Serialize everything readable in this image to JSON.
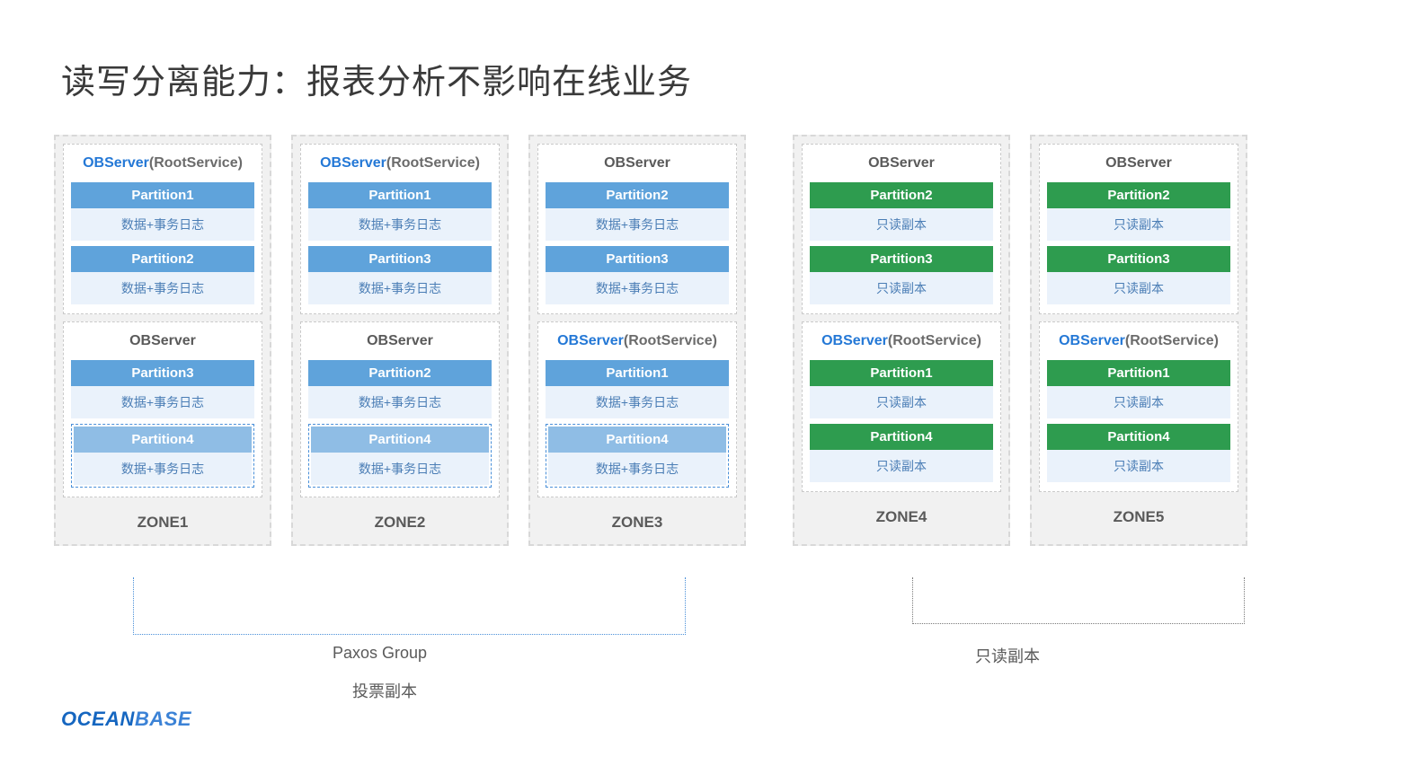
{
  "title": "读写分离能力：报表分析不影响在线业务",
  "colors": {
    "partition_blue": "#5fa3db",
    "partition_blue_light": "#8fbde5",
    "partition_green": "#2e9c4f",
    "partition_body_bg": "#eaf2fb",
    "partition_body_text": "#4a7db5",
    "zone_bg": "#f1f1f1",
    "title_text": "#3a3a3a",
    "bracket_blue": "#4a90d9",
    "bracket_gray": "#7a7a7a"
  },
  "zones": [
    {
      "label": "ZONE1",
      "servers": [
        {
          "title_blue": "OBServer",
          "title_suffix": "(RootService)",
          "partitions": [
            {
              "name": "Partition1",
              "desc": "数据+事务日志",
              "color": "blue",
              "dashed": false
            },
            {
              "name": "Partition2",
              "desc": "数据+事务日志",
              "color": "blue",
              "dashed": false
            }
          ]
        },
        {
          "title_plain": "OBServer",
          "partitions": [
            {
              "name": "Partition3",
              "desc": "数据+事务日志",
              "color": "blue",
              "dashed": false
            },
            {
              "name": "Partition4",
              "desc": "数据+事务日志",
              "color": "blue-light",
              "dashed": true
            }
          ]
        }
      ]
    },
    {
      "label": "ZONE2",
      "servers": [
        {
          "title_blue": "OBServer",
          "title_suffix": "(RootService)",
          "partitions": [
            {
              "name": "Partition1",
              "desc": "数据+事务日志",
              "color": "blue",
              "dashed": false
            },
            {
              "name": "Partition3",
              "desc": "数据+事务日志",
              "color": "blue",
              "dashed": false
            }
          ]
        },
        {
          "title_plain": "OBServer",
          "partitions": [
            {
              "name": "Partition2",
              "desc": "数据+事务日志",
              "color": "blue",
              "dashed": false
            },
            {
              "name": "Partition4",
              "desc": "数据+事务日志",
              "color": "blue-light",
              "dashed": true
            }
          ]
        }
      ]
    },
    {
      "label": "ZONE3",
      "servers": [
        {
          "title_plain": "OBServer",
          "partitions": [
            {
              "name": "Partition2",
              "desc": "数据+事务日志",
              "color": "blue",
              "dashed": false
            },
            {
              "name": "Partition3",
              "desc": "数据+事务日志",
              "color": "blue",
              "dashed": false
            }
          ]
        },
        {
          "title_blue": "OBServer",
          "title_suffix": "(RootService)",
          "partitions": [
            {
              "name": "Partition1",
              "desc": "数据+事务日志",
              "color": "blue",
              "dashed": false
            },
            {
              "name": "Partition4",
              "desc": "数据+事务日志",
              "color": "blue-light",
              "dashed": true
            }
          ]
        }
      ]
    },
    {
      "label": "ZONE4",
      "servers": [
        {
          "title_plain": "OBServer",
          "partitions": [
            {
              "name": "Partition2",
              "desc": "只读副本",
              "color": "green",
              "dashed": false
            },
            {
              "name": "Partition3",
              "desc": "只读副本",
              "color": "green",
              "dashed": false
            }
          ]
        },
        {
          "title_blue": "OBServer",
          "title_suffix": "(RootService)",
          "partitions": [
            {
              "name": "Partition1",
              "desc": "只读副本",
              "color": "green",
              "dashed": false
            },
            {
              "name": "Partition4",
              "desc": "只读副本",
              "color": "green",
              "dashed": false
            }
          ]
        }
      ]
    },
    {
      "label": "ZONE5",
      "servers": [
        {
          "title_plain": "OBServer",
          "partitions": [
            {
              "name": "Partition2",
              "desc": "只读副本",
              "color": "green",
              "dashed": false
            },
            {
              "name": "Partition3",
              "desc": "只读副本",
              "color": "green",
              "dashed": false
            }
          ]
        },
        {
          "title_blue": "OBServer",
          "title_suffix": "(RootService)",
          "partitions": [
            {
              "name": "Partition1",
              "desc": "只读副本",
              "color": "green",
              "dashed": false
            },
            {
              "name": "Partition4",
              "desc": "只读副本",
              "color": "green",
              "dashed": false
            }
          ]
        }
      ]
    }
  ],
  "group_labels": {
    "paxos": "Paxos Group",
    "vote": "投票副本",
    "readonly": "只读副本"
  },
  "logo": {
    "part1": "OCEAN",
    "part2": "BASE"
  }
}
